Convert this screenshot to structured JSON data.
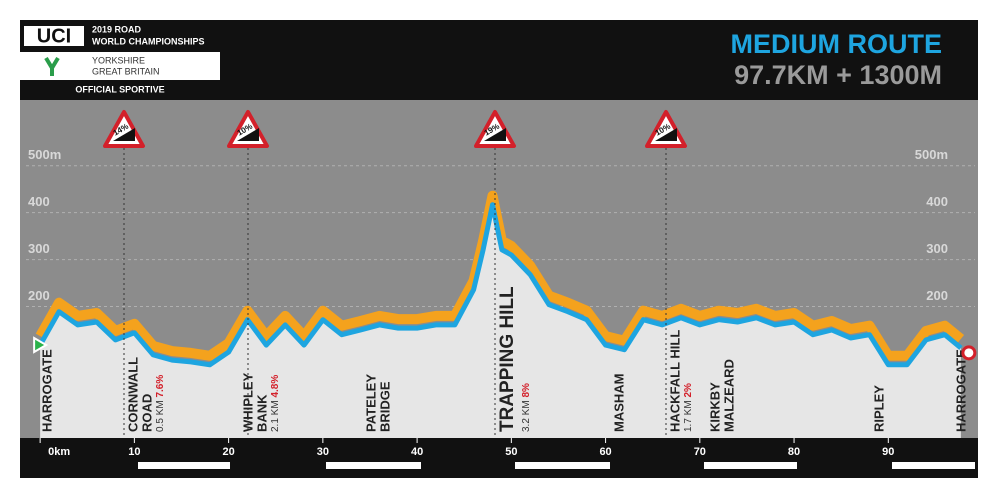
{
  "chart_data": {
    "type": "line",
    "logo": {
      "mark": "UCI",
      "event": [
        "2019 ROAD",
        "WORLD CHAMPIONSHIPS"
      ],
      "host": [
        "YORKSHIRE",
        "GREAT BRITAIN"
      ],
      "tag": "OFFICIAL SPORTIVE"
    },
    "title": "MEDIUM ROUTE",
    "subtitle": "97.7KM + 1300M",
    "x": [
      0,
      2,
      4,
      6,
      8,
      10,
      12,
      14,
      16,
      18,
      20,
      22,
      24,
      26,
      28,
      30,
      32,
      34,
      36,
      38,
      40,
      42,
      44,
      46,
      47,
      48,
      49,
      50,
      52,
      54,
      56,
      58,
      60,
      62,
      64,
      66,
      68,
      70,
      72,
      74,
      76,
      78,
      80,
      82,
      84,
      86,
      88,
      90,
      92,
      94,
      96,
      97.7
    ],
    "values": [
      118,
      189,
      161,
      167,
      129,
      144,
      97,
      86,
      82,
      76,
      103,
      172,
      118,
      161,
      118,
      172,
      140,
      150,
      161,
      154,
      154,
      161,
      161,
      236,
      321,
      417,
      321,
      310,
      268,
      204,
      189,
      172,
      118,
      108,
      172,
      161,
      176,
      161,
      172,
      167,
      176,
      161,
      167,
      140,
      150,
      133,
      140,
      76,
      76,
      129,
      140,
      112
    ],
    "color": "#1ea5e0",
    "xlim": [
      -1.5,
      99.2
    ],
    "ylim": [
      -80,
      640
    ],
    "xticks": [
      {
        "value": 0,
        "label": "0km"
      },
      10,
      20,
      30,
      40,
      50,
      60,
      70,
      80,
      90
    ],
    "yticks": [
      200,
      300,
      400,
      {
        "value": 500,
        "label": "500m"
      }
    ],
    "grid": true,
    "climbs": [
      "14%",
      "10%",
      "19%",
      "10%"
    ],
    "places": [
      {
        "name": [
          "HARROGATE"
        ]
      },
      {
        "name": [
          "CORNWALL",
          "ROAD"
        ],
        "length": "0.5 KM",
        "gradient": "7.6%"
      },
      {
        "name": [
          "WHIPLEY",
          "BANK"
        ],
        "length": "2.1 KM",
        "gradient": "4.8%"
      },
      {
        "name": [
          "PATELEY",
          "BRIDGE"
        ]
      },
      {
        "name": [
          "TRAPPING HILL"
        ],
        "length": "3.2 KM",
        "gradient": "8%"
      },
      {
        "name": [
          "MASHAM"
        ]
      },
      {
        "name": [
          "HACKFALL HILL"
        ],
        "length": "1.7 KM",
        "gradient": "2%"
      },
      {
        "name": [
          "KIRKBY",
          "MALZEARD"
        ]
      },
      {
        "name": [
          "RIPLEY"
        ]
      },
      {
        "name": [
          "HARROGATE"
        ]
      }
    ]
  }
}
